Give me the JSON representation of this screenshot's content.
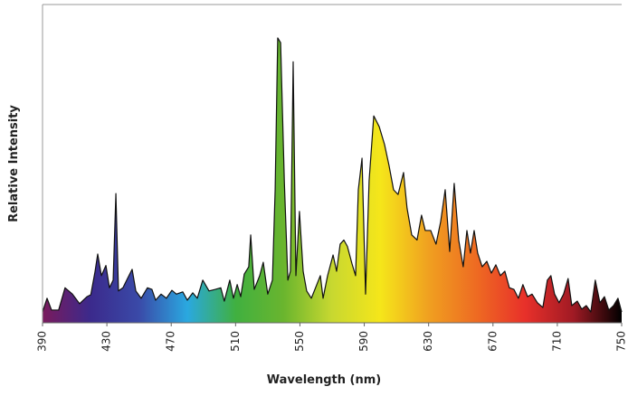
{
  "chart_data": {
    "type": "area",
    "xlabel": "Wavelength (nm)",
    "ylabel": "Relative Intensity",
    "x": [
      390,
      392.8,
      395.6,
      400,
      404,
      408.6,
      413,
      417.6,
      420,
      422.6,
      424.3,
      426.6,
      429.4,
      431.6,
      433.9,
      435.6,
      437.2,
      440,
      442.9,
      445.7,
      448,
      451.3,
      455.2,
      458,
      460.3,
      463.7,
      467,
      470.4,
      473.2,
      477.2,
      480,
      483.4,
      486.2,
      489.6,
      493.5,
      497.4,
      500.8,
      503,
      506.4,
      508.7,
      511,
      513.2,
      515.4,
      518.2,
      519.4,
      521.6,
      525,
      527.2,
      530,
      532.9,
      534.6,
      536.2,
      538,
      540.3,
      542.5,
      544.1,
      545.8,
      547.5,
      549.7,
      552,
      554.2,
      557.1,
      559.3,
      562.7,
      564.4,
      567.2,
      570.6,
      572.8,
      575,
      577.3,
      579.5,
      582.4,
      584.6,
      586.3,
      588.6,
      590.8,
      593,
      595.9,
      599.3,
      602.6,
      605.4,
      608.2,
      611,
      614.4,
      616.6,
      619.5,
      622.8,
      625.6,
      627.9,
      631.3,
      634.6,
      637.5,
      640.3,
      643.1,
      645.9,
      648.7,
      651.5,
      653.8,
      656,
      658.3,
      660.5,
      663.3,
      666.2,
      669,
      671.8,
      674.6,
      677.4,
      680.2,
      683,
      685.8,
      688.6,
      691.5,
      694.3,
      697.6,
      701,
      703.8,
      706,
      708.3,
      711.1,
      713.9,
      716.7,
      719,
      722.4,
      725.2,
      728,
      730.8,
      733.6,
      736.5,
      739.3,
      742,
      745,
      747.7,
      750
    ],
    "y": [
      3.4,
      7.7,
      4,
      4,
      11,
      9,
      6,
      8.2,
      8.8,
      16,
      21.6,
      14.8,
      18,
      11,
      13.4,
      40.6,
      10,
      11,
      14,
      16.8,
      10,
      7.7,
      11,
      10.5,
      7.1,
      9,
      7.7,
      10.2,
      9,
      9.7,
      7.1,
      9.4,
      7.7,
      13.4,
      10,
      10.5,
      11,
      6.8,
      13.4,
      7.7,
      12,
      8.2,
      15.3,
      17.6,
      27.6,
      10.5,
      14.8,
      19,
      9,
      13.4,
      41.8,
      89.5,
      88,
      44.6,
      13.4,
      16.2,
      82,
      14.8,
      35,
      16.2,
      10,
      7.7,
      10.5,
      14.8,
      7.7,
      14.8,
      21.3,
      16.2,
      24.7,
      26,
      24,
      18.5,
      14.8,
      41.8,
      51.7,
      9,
      44.6,
      65,
      61.6,
      56,
      49.4,
      41.8,
      40.3,
      47.2,
      36,
      27.6,
      26,
      33.8,
      29,
      29,
      24.7,
      31.8,
      41.8,
      22.4,
      43.8,
      26,
      17.6,
      29,
      21.9,
      29,
      21.9,
      17.6,
      19.3,
      15.6,
      18.2,
      14.8,
      16.2,
      11,
      10.5,
      7.7,
      12,
      8.2,
      9,
      6.3,
      4.8,
      13.4,
      14.8,
      9,
      6.3,
      9,
      13.9,
      5.4,
      6.8,
      4.3,
      5.4,
      3.4,
      13.4,
      6.3,
      8.2,
      4,
      5.4,
      7.7,
      3.4
    ],
    "xlim": [
      390,
      750
    ],
    "xticks": [
      390,
      430,
      470,
      510,
      550,
      590,
      630,
      670,
      710,
      750
    ],
    "ylim": [
      0,
      100
    ],
    "line_color": "#111111",
    "gradient": [
      "#7a1a5c",
      "#3b2a8c",
      "#3a4aa8",
      "#2aa8e0",
      "#40b040",
      "#6ab52e",
      "#c8d830",
      "#f5e61a",
      "#f0a020",
      "#ee6a22",
      "#e8302a",
      "#a01a24",
      "#000000"
    ]
  }
}
